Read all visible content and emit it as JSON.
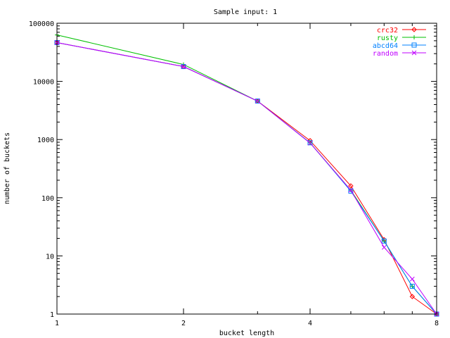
{
  "chart_data": {
    "type": "line",
    "title": "Sample input: 1",
    "xlabel": "bucket length",
    "ylabel": "number of buckets",
    "x_scale": "log2",
    "y_scale": "log10",
    "xlim": [
      1,
      8
    ],
    "ylim": [
      1,
      100000
    ],
    "x_ticks": [
      {
        "value": 1,
        "label": "1"
      },
      {
        "value": 2,
        "label": "2"
      },
      {
        "value": 4,
        "label": "4"
      },
      {
        "value": 8,
        "label": "8"
      }
    ],
    "y_ticks": [
      {
        "value": 1,
        "label": "1"
      },
      {
        "value": 10,
        "label": "10"
      },
      {
        "value": 100,
        "label": "100"
      },
      {
        "value": 1000,
        "label": "1000"
      },
      {
        "value": 10000,
        "label": "10000"
      },
      {
        "value": 100000,
        "label": "100000"
      }
    ],
    "x": [
      1,
      2,
      3,
      4,
      5,
      6,
      7,
      8
    ],
    "legend_position": "top-right",
    "grid": false,
    "series": [
      {
        "name": "crc32",
        "color": "#ff0000",
        "marker": "diamond",
        "values": [
          46500,
          18000,
          4600,
          960,
          160,
          19,
          2,
          1
        ]
      },
      {
        "name": "rusty",
        "color": "#00c000",
        "marker": "plus",
        "values": [
          63000,
          19500,
          4600,
          880,
          135,
          18,
          3,
          1
        ]
      },
      {
        "name": "abcd64",
        "color": "#0080ff",
        "marker": "square",
        "values": [
          46500,
          18000,
          4600,
          880,
          130,
          18,
          3,
          1
        ]
      },
      {
        "name": "random",
        "color": "#c000ff",
        "marker": "cross",
        "values": [
          46500,
          18000,
          4600,
          870,
          135,
          14,
          4,
          1
        ]
      }
    ]
  }
}
